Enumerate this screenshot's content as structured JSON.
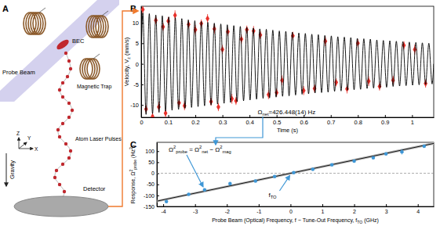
{
  "chart_data": [
    {
      "type": "scatter",
      "panel_label": "B",
      "x_label": [
        {
          "text": "Time (s)"
        }
      ],
      "y_label": [
        {
          "text": "Velocity, V"
        },
        {
          "sub": "z"
        },
        {
          "text": " (mm/s)"
        }
      ],
      "xlim": [
        0,
        1.08
      ],
      "ylim": [
        -13,
        14
      ],
      "xticks": [
        0,
        0.1,
        0.2,
        0.3,
        0.4,
        0.5,
        0.6,
        0.7,
        0.8,
        0.9,
        1
      ],
      "yticks": [
        -10,
        -5,
        0,
        5,
        10
      ],
      "grid": false,
      "series": [
        {
          "type": "scatter",
          "color": "#e8312b",
          "marker": "diamond",
          "x": [
            0.006,
            0.018,
            0.042,
            0.054,
            0.065,
            0.081,
            0.09,
            0.1,
            0.125,
            0.14,
            0.16,
            0.175,
            0.2,
            0.222,
            0.245,
            0.258,
            0.27,
            0.285,
            0.3,
            0.32,
            0.335,
            0.35,
            0.37,
            0.39,
            0.415,
            0.44,
            0.47,
            0.5,
            0.52,
            0.56,
            0.6,
            0.64,
            0.68,
            0.72,
            0.76,
            0.8,
            0.84,
            0.88,
            0.93,
            0.97,
            1.01,
            1.05
          ],
          "values": [
            13.2,
            -11.0,
            -12.8,
            10.6,
            -10.5,
            9.0,
            -12.0,
            10.4,
            11.8,
            -9.5,
            -10.2,
            9.6,
            8.3,
            9.8,
            11.0,
            -9.2,
            8.5,
            -10.5,
            3.5,
            7.8,
            -8.5,
            -9.0,
            6.0,
            8.3,
            8.0,
            7.0,
            -7.5,
            -7.0,
            -4.0,
            6.8,
            -6.5,
            -6.0,
            5.5,
            -4.5,
            -6.1,
            5.0,
            -4.2,
            -5.5,
            -4.0,
            4.5,
            3.5,
            -4.8
          ],
          "errors": [
            1.2,
            1.0,
            1.1,
            1.0,
            1.2,
            1.0,
            1.1,
            1.0,
            1.2,
            1.0,
            1.1,
            1.0,
            1.2,
            1.0,
            1.1,
            1.0,
            1.2,
            1.0,
            1.1,
            1.0,
            1.2,
            1.0,
            1.1,
            1.0,
            1.2,
            1.0,
            1.1,
            1.0,
            1.2,
            1.0,
            1.1,
            1.0,
            1.2,
            1.0,
            1.1,
            1.0,
            1.2,
            1.0,
            1.1,
            1.0,
            1.2,
            1.0
          ]
        },
        {
          "type": "line",
          "color": "#000000",
          "line_style": "solid",
          "x": [
            0,
            0.006,
            0.018,
            0.03,
            0.042,
            0.054,
            0.066,
            0.078,
            0.09,
            0.102,
            0.114,
            0.126,
            0.138,
            0.15,
            0.162,
            0.174,
            0.186,
            0.198,
            0.21,
            0.222,
            0.234,
            0.246,
            0.258,
            0.27,
            0.282,
            0.294,
            0.306,
            0.318,
            0.33,
            0.342,
            0.354,
            0.366,
            0.378,
            0.39,
            0.402,
            0.414,
            0.426,
            0.438,
            0.45,
            0.462,
            0.474,
            0.486,
            0.498,
            0.51,
            0.522,
            0.534,
            0.546,
            0.558,
            0.57,
            0.582,
            0.594,
            0.606,
            0.618,
            0.63,
            0.642,
            0.654,
            0.666,
            0.678,
            0.69,
            0.702,
            0.714,
            0.726,
            0.738,
            0.75,
            0.762,
            0.774,
            0.786,
            0.798,
            0.81,
            0.822,
            0.834,
            0.846,
            0.858,
            0.87,
            0.882,
            0.894,
            0.906,
            0.918,
            0.93,
            0.942,
            0.954,
            0.966,
            0.978,
            0.99,
            1.002,
            1.014,
            1.026,
            1.038,
            1.05,
            1.062,
            1.074,
            1.08
          ],
          "values": [
            0,
            12.4,
            -12.3,
            12.2,
            -12.1,
            11.9,
            -11.8,
            11.7,
            -11.5,
            11.4,
            -11.3,
            11.2,
            -11.1,
            11.0,
            -10.8,
            10.7,
            -10.6,
            10.5,
            -10.4,
            10.3,
            -10.2,
            10.1,
            -10.0,
            9.9,
            -9.8,
            9.7,
            -9.6,
            9.5,
            -9.4,
            9.3,
            -9.2,
            9.1,
            -9.0,
            8.9,
            -8.8,
            8.7,
            -8.6,
            8.5,
            -8.4,
            8.4,
            -8.3,
            8.2,
            -8.1,
            8.0,
            -7.9,
            7.9,
            -7.8,
            7.7,
            -7.6,
            7.5,
            -7.4,
            7.4,
            -7.3,
            7.2,
            -7.1,
            7.1,
            -7.0,
            6.9,
            -6.9,
            6.8,
            -6.7,
            6.6,
            -6.6,
            6.5,
            -6.4,
            6.4,
            -6.3,
            6.2,
            -6.2,
            6.1,
            -6.0,
            6.0,
            -5.9,
            5.8,
            -5.8,
            5.7,
            -5.7,
            5.6,
            -5.5,
            5.5,
            -5.4,
            5.4,
            -5.3,
            5.3,
            -5.2,
            5.2,
            -5.1,
            5.1,
            -5.0,
            5.0,
            -4.9,
            0
          ]
        }
      ],
      "annotations": [
        {
          "parts": [
            {
              "text": "Ω"
            },
            {
              "sub": "net"
            },
            {
              "text": "=426.448(14) Hz"
            }
          ]
        }
      ]
    },
    {
      "type": "scatter",
      "panel_label": "C",
      "x_label": [
        {
          "text": "Probe Beam (Optical) Frequency, f − Tune-Out Frequency, f"
        },
        {
          "sub": "TO"
        },
        {
          "text": " (GHz)"
        }
      ],
      "y_label": [
        {
          "text": "Response, Ω"
        },
        {
          "sup": "2"
        },
        {
          "sub": "probe"
        },
        {
          "text": " (Hz"
        },
        {
          "sup": "2"
        },
        {
          "text": ")"
        }
      ],
      "xlim": [
        -4.2,
        4.5
      ],
      "ylim": [
        -150,
        140
      ],
      "xticks": [
        -4,
        -3,
        -2,
        -1,
        0,
        1,
        2,
        3,
        4
      ],
      "yticks": [
        -150,
        -100,
        -50,
        0,
        50,
        100
      ],
      "grid": false,
      "reference_lines": [
        {
          "axis": "y",
          "value": 0,
          "line_style": "dashed"
        }
      ],
      "series": [
        {
          "type": "line",
          "color": "#000000",
          "line_style": "solid",
          "x": [
            -4.2,
            4.5
          ],
          "values": [
            -126,
            135
          ],
          "band_lower": [
            -131,
            129
          ],
          "band_upper": [
            -121,
            141
          ]
        },
        {
          "type": "scatter",
          "color": "#3f97d6",
          "marker": "circle",
          "x": [
            -3.9,
            -3.2,
            -2.7,
            -1.9,
            -1.1,
            -0.5,
            0.1,
            0.7,
            1.3,
            2.0,
            2.6,
            3.0,
            3.5,
            4.2
          ],
          "values": [
            -128,
            -95,
            -75,
            -47,
            -35,
            -15,
            3,
            18,
            38,
            55,
            70,
            88,
            97,
            122
          ],
          "errors": [
            3,
            3,
            4,
            3,
            3,
            3,
            3,
            3,
            3,
            4,
            4,
            6,
            12,
            6
          ]
        }
      ],
      "annotations": [
        {
          "parts": [
            {
              "text": "Ω"
            },
            {
              "sup": "2"
            },
            {
              "sub": "probe"
            },
            {
              "text": " = Ω"
            },
            {
              "sup": "2"
            },
            {
              "sub": "net"
            },
            {
              "text": " − Ω"
            },
            {
              "sup": "2"
            },
            {
              "sub": "mag"
            }
          ]
        },
        {
          "parts": [
            {
              "text": "f"
            },
            {
              "sub": "TO"
            }
          ]
        }
      ]
    }
  ],
  "diagram": {
    "panel_label": "A",
    "labels": {
      "bec": "BEC",
      "probe_beam": "Probe Beam",
      "magnetic_trap": "Magnetic Trap",
      "atom_laser_pulses": "Atom Laser Pulses",
      "detector": "Detector",
      "gravity": "Gravity"
    },
    "axes": [
      "Z",
      "Y",
      "X"
    ]
  }
}
